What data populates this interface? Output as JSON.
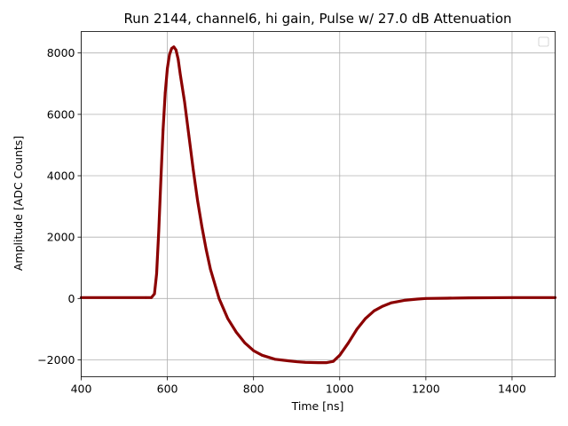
{
  "chart_data": {
    "type": "scatter",
    "title": "Run 2144, channel6, hi gain, Pulse w/ 27.0 dB Attenuation",
    "xlabel": "Time [ns]",
    "ylabel": "Amplitude [ADC Counts]",
    "xlim": [
      400,
      1500
    ],
    "ylim": [
      -2550,
      8700
    ],
    "xticks": [
      400,
      600,
      800,
      1000,
      1200,
      1400
    ],
    "yticks": [
      -2000,
      0,
      2000,
      4000,
      6000,
      8000
    ],
    "ytick_labels": [
      "−2000",
      "0",
      "2000",
      "4000",
      "6000",
      "8000"
    ],
    "grid": true,
    "legend": "top-right (empty)",
    "series": [
      {
        "color": "#8b0000",
        "x": [
          400,
          550,
          563,
          570,
          575,
          580,
          585,
          590,
          595,
          600,
          605,
          610,
          615,
          620,
          625,
          630,
          640,
          650,
          660,
          670,
          680,
          690,
          700,
          720,
          740,
          760,
          780,
          800,
          820,
          850,
          880,
          900,
          920,
          950,
          970,
          985,
          1000,
          1020,
          1040,
          1060,
          1080,
          1100,
          1120,
          1150,
          1180,
          1200,
          1250,
          1300,
          1400,
          1500
        ],
        "y": [
          30,
          30,
          30,
          150,
          800,
          2200,
          3900,
          5500,
          6700,
          7500,
          7950,
          8150,
          8200,
          8100,
          7800,
          7300,
          6400,
          5300,
          4200,
          3200,
          2350,
          1600,
          950,
          0,
          -650,
          -1100,
          -1450,
          -1700,
          -1850,
          -1980,
          -2030,
          -2060,
          -2080,
          -2090,
          -2090,
          -2050,
          -1850,
          -1450,
          -1000,
          -650,
          -400,
          -250,
          -140,
          -60,
          -20,
          0,
          10,
          20,
          30,
          30
        ]
      }
    ]
  }
}
